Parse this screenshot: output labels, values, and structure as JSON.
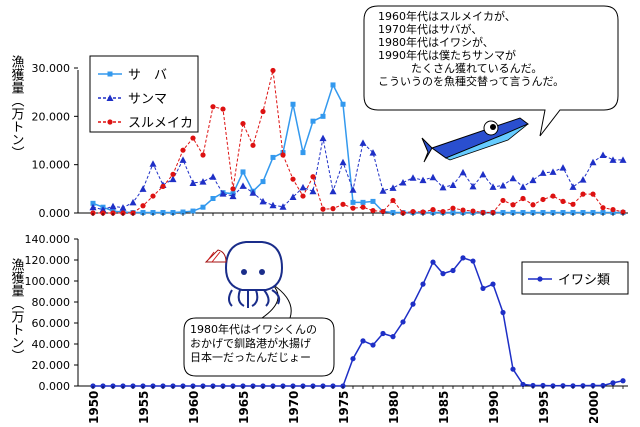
{
  "chart_data": [
    {
      "type": "line",
      "ylabel": "漁獲量（万トン）",
      "ylim": [
        0,
        30000
      ],
      "yticks": [
        "0.000",
        "10.000",
        "20.000",
        "30.000"
      ],
      "grid": false,
      "legend_position": "top-left",
      "x": [
        1950,
        1951,
        1952,
        1953,
        1954,
        1955,
        1956,
        1957,
        1958,
        1959,
        1960,
        1961,
        1962,
        1963,
        1964,
        1965,
        1966,
        1967,
        1968,
        1969,
        1970,
        1971,
        1972,
        1973,
        1974,
        1975,
        1976,
        1977,
        1978,
        1979,
        1980,
        1981,
        1982,
        1983,
        1984,
        1985,
        1986,
        1987,
        1988,
        1989,
        1990,
        1991,
        1992,
        1993,
        1994,
        1995,
        1996,
        1997,
        1998,
        1999,
        2000,
        2001,
        2002,
        2003
      ],
      "series": [
        {
          "name": "サ　バ",
          "color": "#3399ee",
          "marker": "square",
          "dash": "solid",
          "values": [
            2000,
            1200,
            400,
            200,
            100,
            100,
            100,
            100,
            100,
            200,
            400,
            1200,
            3000,
            4200,
            4000,
            8500,
            4500,
            6500,
            11500,
            12500,
            22500,
            12500,
            19000,
            20000,
            26500,
            22500,
            2200,
            2200,
            2400,
            300,
            100,
            100,
            100,
            100,
            100,
            100,
            100,
            100,
            100,
            100,
            100,
            100,
            100,
            100,
            100,
            100,
            100,
            100,
            100,
            100,
            100,
            100,
            100,
            100
          ]
        },
        {
          "name": "サンマ",
          "color": "#1e2fc6",
          "marker": "triangle",
          "dash": "dashed",
          "values": [
            1200,
            700,
            1400,
            1100,
            2200,
            5000,
            10200,
            5800,
            7000,
            11000,
            6200,
            6500,
            7500,
            4000,
            3500,
            5600,
            4200,
            2400,
            1600,
            1300,
            3300,
            5300,
            4500,
            15500,
            4500,
            10500,
            4800,
            14500,
            12500,
            4600,
            5200,
            6300,
            7300,
            6800,
            7400,
            5300,
            5800,
            8400,
            5500,
            8000,
            5400,
            5700,
            7200,
            5400,
            6800,
            8300,
            8500,
            9400,
            5400,
            6900,
            10500,
            12000,
            11000,
            11000
          ]
        },
        {
          "name": "スルメイカ",
          "color": "#dd1111",
          "marker": "circle",
          "dash": "dashed",
          "values": [
            0,
            0,
            0,
            0,
            0,
            1500,
            3500,
            5500,
            8000,
            13000,
            15500,
            12000,
            22000,
            21500,
            5000,
            18500,
            14000,
            21000,
            29500,
            12000,
            7000,
            3500,
            7500,
            800,
            900,
            1800,
            1000,
            1200,
            500,
            300,
            2600,
            0,
            300,
            200,
            700,
            300,
            1000,
            600,
            400,
            100,
            100,
            2600,
            1700,
            3000,
            1700,
            2800,
            3500,
            2400,
            1800,
            3900,
            3900,
            1100,
            700,
            200
          ]
        }
      ]
    },
    {
      "type": "line",
      "ylabel": "漁獲量（万トン）",
      "ylim": [
        0,
        140000
      ],
      "yticks": [
        "0.000",
        "20.000",
        "40.000",
        "60.000",
        "80.000",
        "100.000",
        "120.000",
        "140.000"
      ],
      "xticks": [
        "1950",
        "1955",
        "1960",
        "1965",
        "1970",
        "1975",
        "1980",
        "1985",
        "1990",
        "1995",
        "2000"
      ],
      "grid": false,
      "legend_position": "right",
      "x": [
        1950,
        1951,
        1952,
        1953,
        1954,
        1955,
        1956,
        1957,
        1958,
        1959,
        1960,
        1961,
        1962,
        1963,
        1964,
        1965,
        1966,
        1967,
        1968,
        1969,
        1970,
        1971,
        1972,
        1973,
        1974,
        1975,
        1976,
        1977,
        1978,
        1979,
        1980,
        1981,
        1982,
        1983,
        1984,
        1985,
        1986,
        1987,
        1988,
        1989,
        1990,
        1991,
        1992,
        1993,
        1994,
        1995,
        1996,
        1997,
        1998,
        1999,
        2000,
        2001,
        2002,
        2003
      ],
      "series": [
        {
          "name": "イワシ類",
          "color": "#1e2fc6",
          "marker": "circle",
          "dash": "solid",
          "values": [
            0,
            0,
            0,
            0,
            0,
            0,
            0,
            0,
            0,
            0,
            0,
            0,
            0,
            0,
            0,
            0,
            0,
            0,
            0,
            0,
            0,
            0,
            0,
            0,
            0,
            0,
            26000,
            43000,
            39000,
            50000,
            47000,
            61000,
            78000,
            97000,
            118000,
            107000,
            110000,
            122000,
            119000,
            93000,
            97000,
            70000,
            16000,
            1500,
            500,
            500,
            200,
            300,
            200,
            300,
            500,
            500,
            3000,
            5000
          ]
        }
      ]
    }
  ],
  "callouts": {
    "top": [
      "1960年代はスルメイカが、",
      "1970年代はサバが、",
      "1980年代はイワシが、",
      "1990年代は僕たちサンマが",
      "　　　たくさん獲れているんだ。",
      "こういうのを魚種交替って言うんだ。"
    ],
    "bottom": [
      "1980年代はイワシくんの",
      "おかげで釧路港が水揚げ",
      "日本一だったんだじょー"
    ]
  },
  "icons": {
    "top": "sanma-fish-icon",
    "bottom": "squid-with-fan-icon"
  }
}
